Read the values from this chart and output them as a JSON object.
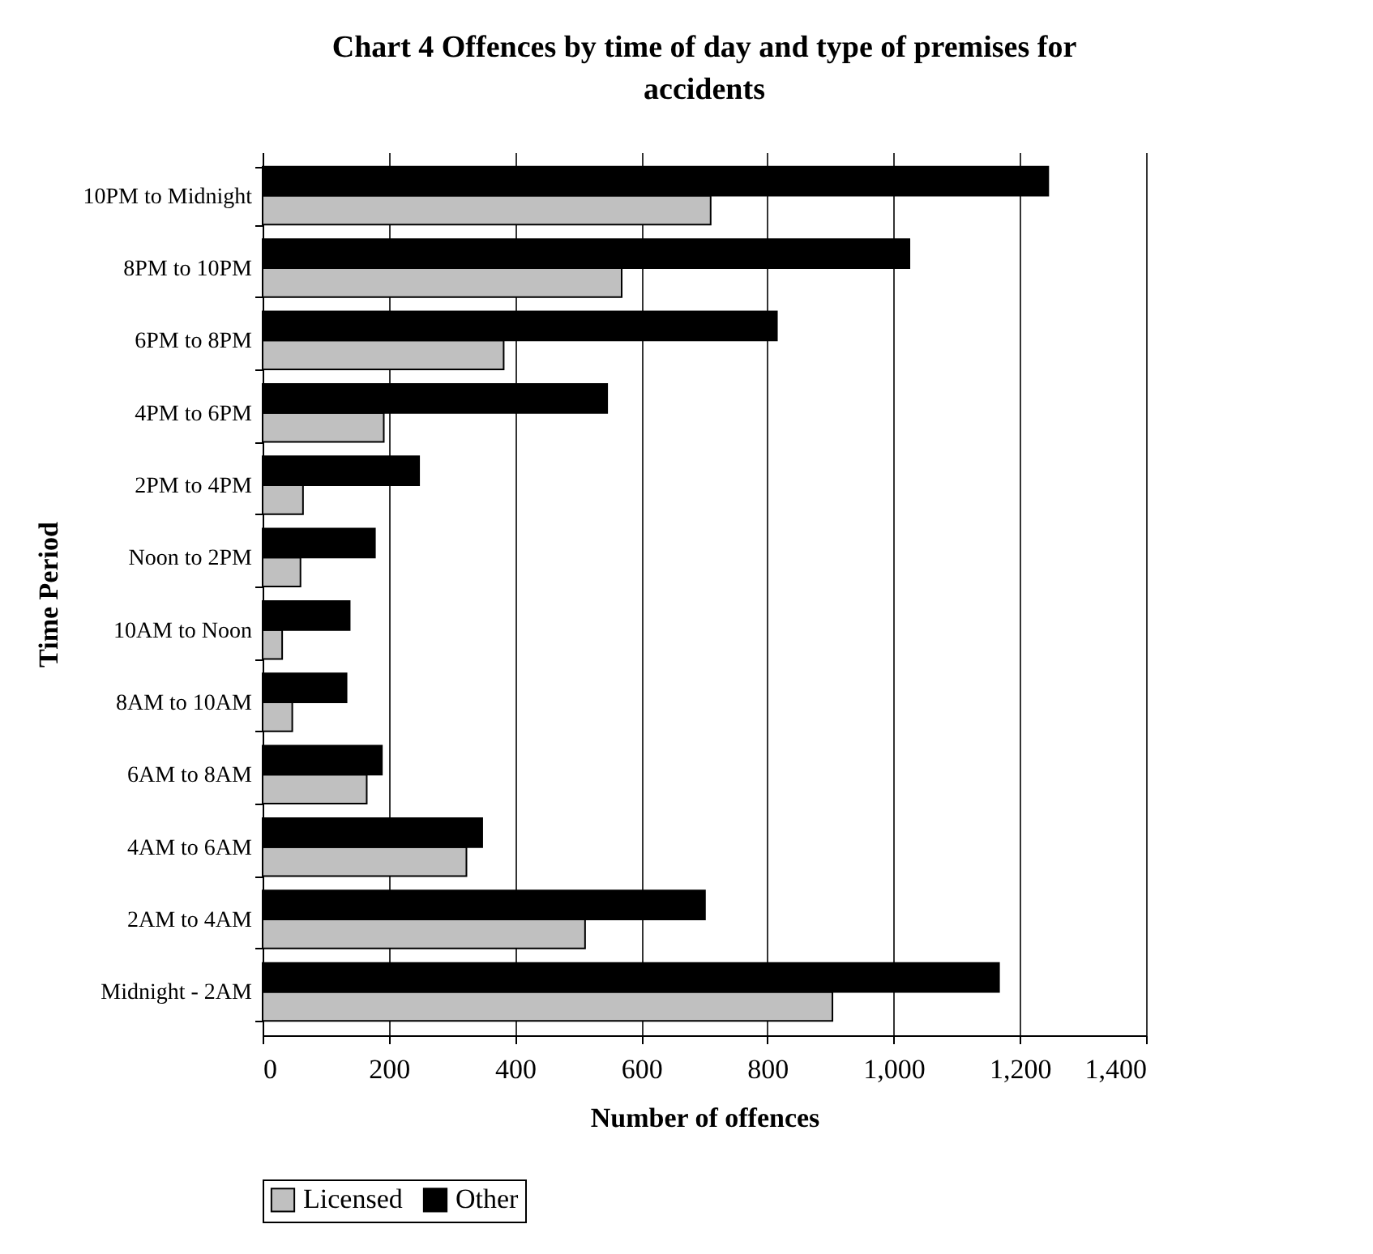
{
  "chart_data": {
    "type": "bar",
    "orientation": "horizontal",
    "title": "Chart 4 Offences by time of day and type of premises for accidents",
    "xlabel": "Number of offences",
    "ylabel": "Time Period",
    "categories": [
      "10PM to Midnight",
      "8PM to 10PM",
      "6PM to 8PM",
      "4PM to 6PM",
      "2PM to 4PM",
      "Noon to 2PM",
      "10AM to Noon",
      "8AM to 10AM",
      "6AM to 8AM",
      "4AM to 6AM",
      "2AM to 4AM",
      "Midnight - 2AM"
    ],
    "series": [
      {
        "name": "Licensed",
        "color": "#c0c0c0",
        "values": [
          710,
          569,
          382,
          192,
          64,
          60,
          31,
          47,
          165,
          323,
          511,
          903
        ]
      },
      {
        "name": "Other",
        "color": "#000000",
        "values": [
          1245,
          1025,
          815,
          546,
          248,
          178,
          138,
          133,
          189,
          348,
          701,
          1167
        ]
      }
    ],
    "xlim": [
      0,
      1400
    ],
    "xticks": [
      0,
      200,
      400,
      600,
      800,
      {
        "value": 1000,
        "label": "1,000"
      },
      {
        "value": 1200,
        "label": "1,200"
      },
      {
        "value": 1400,
        "label": "1,400"
      }
    ],
    "grid": "x",
    "legend": "bottom"
  }
}
